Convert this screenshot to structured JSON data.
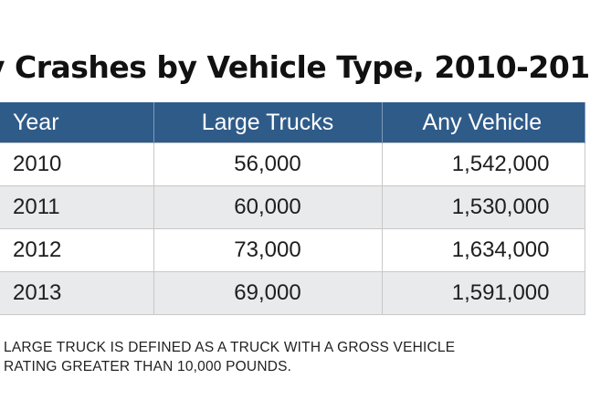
{
  "title": "y Crashes by Vehicle Type, 2010-201",
  "table": {
    "headers": [
      "Year",
      "Large Trucks",
      "Any Vehicle"
    ],
    "rows": [
      [
        "2010",
        "56,000",
        "1,542,000"
      ],
      [
        "2011",
        "60,000",
        "1,530,000"
      ],
      [
        "2012",
        "73,000",
        "1,634,000"
      ],
      [
        "2013",
        "69,000",
        "1,591,000"
      ]
    ]
  },
  "footnote": {
    "line1": "LARGE TRUCK IS DEFINED AS A TRUCK WITH A GROSS VEHICLE",
    "line2": "RATING GREATER THAN 10,000 POUNDS."
  },
  "colors": {
    "header_bg": "#2f5b89",
    "header_text": "#ffffff",
    "row_alt_bg": "#e9eaeb",
    "row_bg": "#ffffff"
  }
}
